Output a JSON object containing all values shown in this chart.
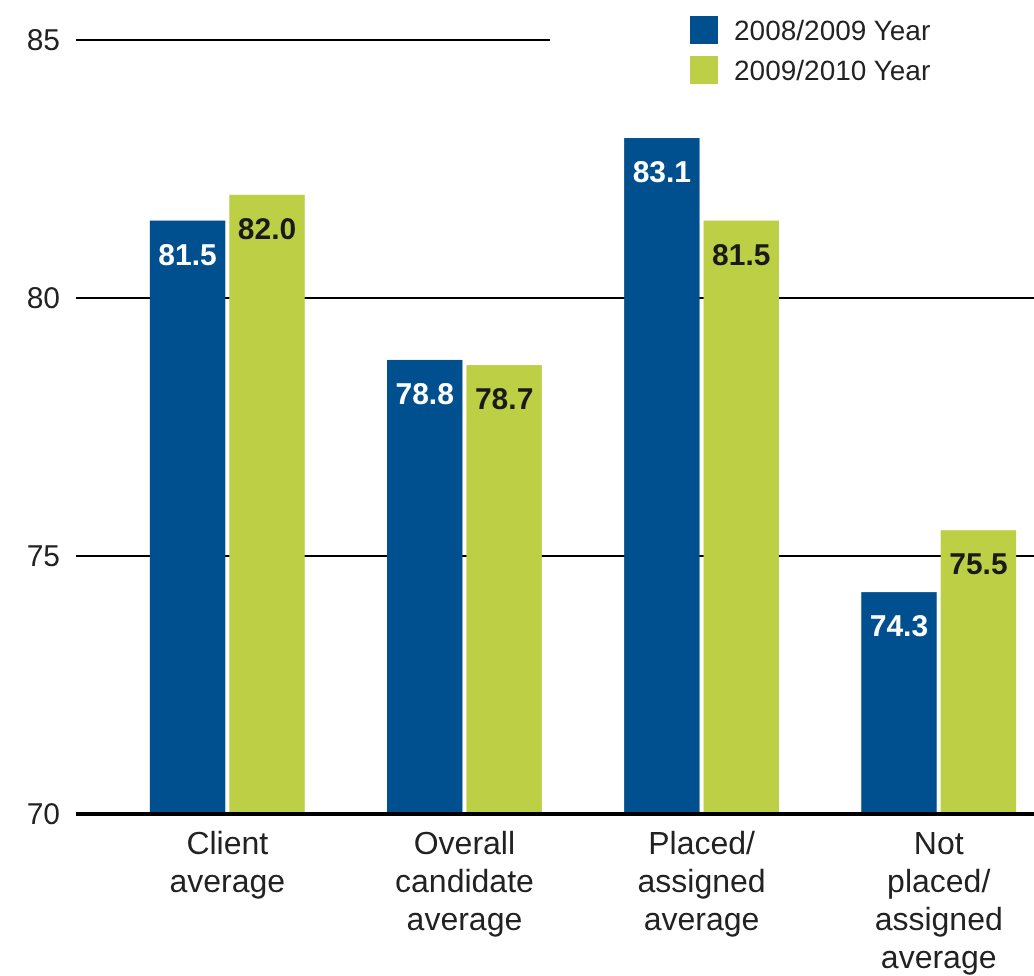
{
  "chart_data": {
    "type": "bar",
    "categories": [
      "Client average",
      "Overall candidate average",
      "Placed/ assigned average",
      "Not placed/ assigned average"
    ],
    "series": [
      {
        "name": "2008/2009 Year",
        "color": "#004f8f",
        "values": [
          81.5,
          78.8,
          83.1,
          74.3
        ],
        "value_labels": [
          "81.5",
          "78.8",
          "83.1",
          "74.3"
        ]
      },
      {
        "name": "2009/2010 Year",
        "color": "#bccf45",
        "values": [
          82.0,
          78.7,
          81.5,
          75.5
        ],
        "value_labels": [
          "82.0",
          "78.7",
          "81.5",
          "75.5"
        ]
      }
    ],
    "ylim": [
      70,
      85
    ],
    "yticks": [
      70,
      75,
      80,
      85
    ],
    "grid": "y",
    "legend": "top right"
  }
}
